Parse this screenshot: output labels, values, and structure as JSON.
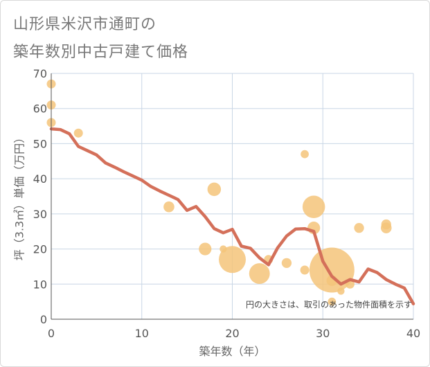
{
  "chart_data": {
    "type": "scatter",
    "title_lines": [
      "山形県米沢市通町の",
      "築年数別中古戸建て価格"
    ],
    "xlabel": "築年数（年）",
    "ylabel": "坪（3.3㎡）単価（万円）",
    "note": "円の大きさは、取引のあった物件面積を示す",
    "xlim": [
      0,
      40
    ],
    "ylim": [
      0,
      70
    ],
    "x_ticks": [
      0,
      10,
      20,
      30,
      40
    ],
    "y_ticks": [
      0,
      10,
      20,
      30,
      40,
      50,
      60,
      70
    ],
    "grid": true,
    "colors": {
      "bubble": "#f5c47a",
      "line": "#d4705a",
      "grid": "#c8d6e5",
      "axis": "#555555"
    },
    "bubbles": [
      {
        "x": 0,
        "y": 67,
        "size": 1.0
      },
      {
        "x": 0,
        "y": 61,
        "size": 1.0
      },
      {
        "x": 0,
        "y": 56,
        "size": 1.0
      },
      {
        "x": 3,
        "y": 53,
        "size": 1.0
      },
      {
        "x": 13,
        "y": 32,
        "size": 1.2
      },
      {
        "x": 18,
        "y": 37,
        "size": 1.5
      },
      {
        "x": 17,
        "y": 20,
        "size": 1.4
      },
      {
        "x": 19,
        "y": 20,
        "size": 0.8
      },
      {
        "x": 20,
        "y": 17,
        "size": 3.0
      },
      {
        "x": 23,
        "y": 13,
        "size": 2.3
      },
      {
        "x": 24,
        "y": 17,
        "size": 1.0
      },
      {
        "x": 26,
        "y": 16,
        "size": 1.1
      },
      {
        "x": 28,
        "y": 47,
        "size": 0.9
      },
      {
        "x": 28,
        "y": 14,
        "size": 1.0
      },
      {
        "x": 29,
        "y": 32,
        "size": 2.5
      },
      {
        "x": 29,
        "y": 26,
        "size": 1.4
      },
      {
        "x": 31,
        "y": 14,
        "size": 5.0
      },
      {
        "x": 31,
        "y": 11,
        "size": 1.2
      },
      {
        "x": 31,
        "y": 5,
        "size": 0.9
      },
      {
        "x": 32,
        "y": 8,
        "size": 0.8
      },
      {
        "x": 33,
        "y": 10,
        "size": 1.0
      },
      {
        "x": 34,
        "y": 26,
        "size": 1.1
      },
      {
        "x": 37,
        "y": 26,
        "size": 1.2
      },
      {
        "x": 37,
        "y": 27,
        "size": 1.1
      }
    ],
    "trend_line": {
      "x": [
        0,
        1,
        2,
        3,
        4,
        5,
        6,
        7,
        8,
        9,
        10,
        11,
        12,
        13,
        14,
        15,
        16,
        17,
        18,
        19,
        20,
        21,
        22,
        23,
        24,
        25,
        26,
        27,
        28,
        29,
        30,
        31,
        32,
        33,
        34,
        35,
        36,
        37,
        38,
        39,
        40
      ],
      "y": [
        54.2,
        54.0,
        52.8,
        49.2,
        48.0,
        46.8,
        44.5,
        43.3,
        42.0,
        40.8,
        39.6,
        37.8,
        36.5,
        35.3,
        34.1,
        31.0,
        32.1,
        29.2,
        25.8,
        24.6,
        25.6,
        20.8,
        20.2,
        17.5,
        15.5,
        20.3,
        23.7,
        25.7,
        25.8,
        25.0,
        16.5,
        12.2,
        10.0,
        11.3,
        10.6,
        14.3,
        13.3,
        11.3,
        10.0,
        8.9,
        4.4
      ]
    }
  }
}
